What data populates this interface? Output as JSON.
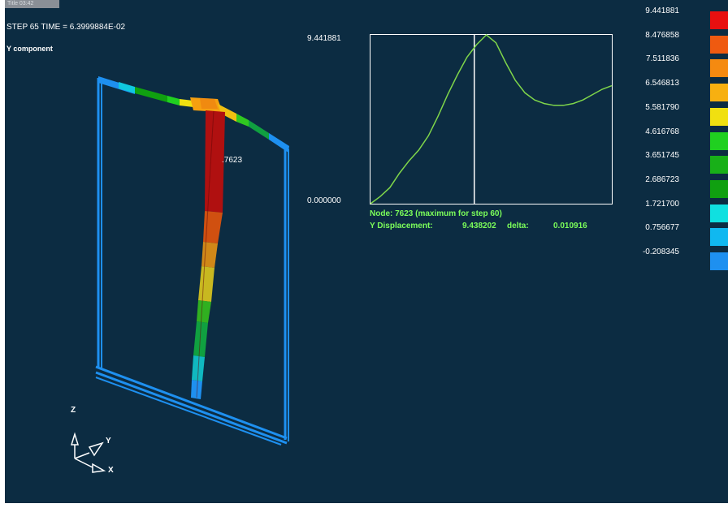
{
  "window": {
    "label": "Title 03:42"
  },
  "header": {
    "step_line": "STEP 65   TIME =  6.3999884E-02",
    "component": "Y component"
  },
  "model": {
    "node_label": ".7623"
  },
  "plot": {
    "ymax_label": "9.441881",
    "ymin_label": "0.000000",
    "info_node": "Node:   7623 (maximum for step   60)",
    "info_disp_label": "Y Displacement:",
    "info_disp_value": "9.438202",
    "info_delta_label": "delta:",
    "info_delta_value": "0.010916"
  },
  "chart_data": {
    "type": "line",
    "series": [
      {
        "x": [
          0,
          4,
          8,
          12,
          16,
          20,
          24,
          28,
          32,
          36,
          40,
          44,
          48,
          52,
          56,
          60,
          64,
          68,
          72,
          76,
          80,
          84,
          88,
          92,
          96,
          100
        ],
        "values": [
          0.0,
          0.4,
          0.9,
          1.7,
          2.4,
          3.0,
          3.8,
          4.9,
          6.1,
          7.2,
          8.2,
          8.9,
          9.44,
          9.0,
          7.9,
          6.9,
          6.2,
          5.8,
          5.6,
          5.5,
          5.5,
          5.6,
          5.8,
          6.1,
          6.4,
          6.6
        ]
      }
    ],
    "ylim": [
      0.0,
      9.441881
    ],
    "cursor_x": 43,
    "color": "#7fd64a"
  },
  "legend": {
    "values": [
      "9.441881",
      "8.476858",
      "7.511836",
      "6.546813",
      "5.581790",
      "4.616768",
      "3.651745",
      "2.686723",
      "1.721700",
      "0.756677",
      "-0.208345"
    ],
    "colors": [
      "#e81010",
      "#ef5a10",
      "#f58a10",
      "#f7b010",
      "#f0e010",
      "#20d020",
      "#18b018",
      "#10a010",
      "#10e0e0",
      "#10b8f0",
      "#1e90f0"
    ]
  },
  "axes": {
    "z": "Z",
    "y": "Y",
    "x": "X"
  }
}
